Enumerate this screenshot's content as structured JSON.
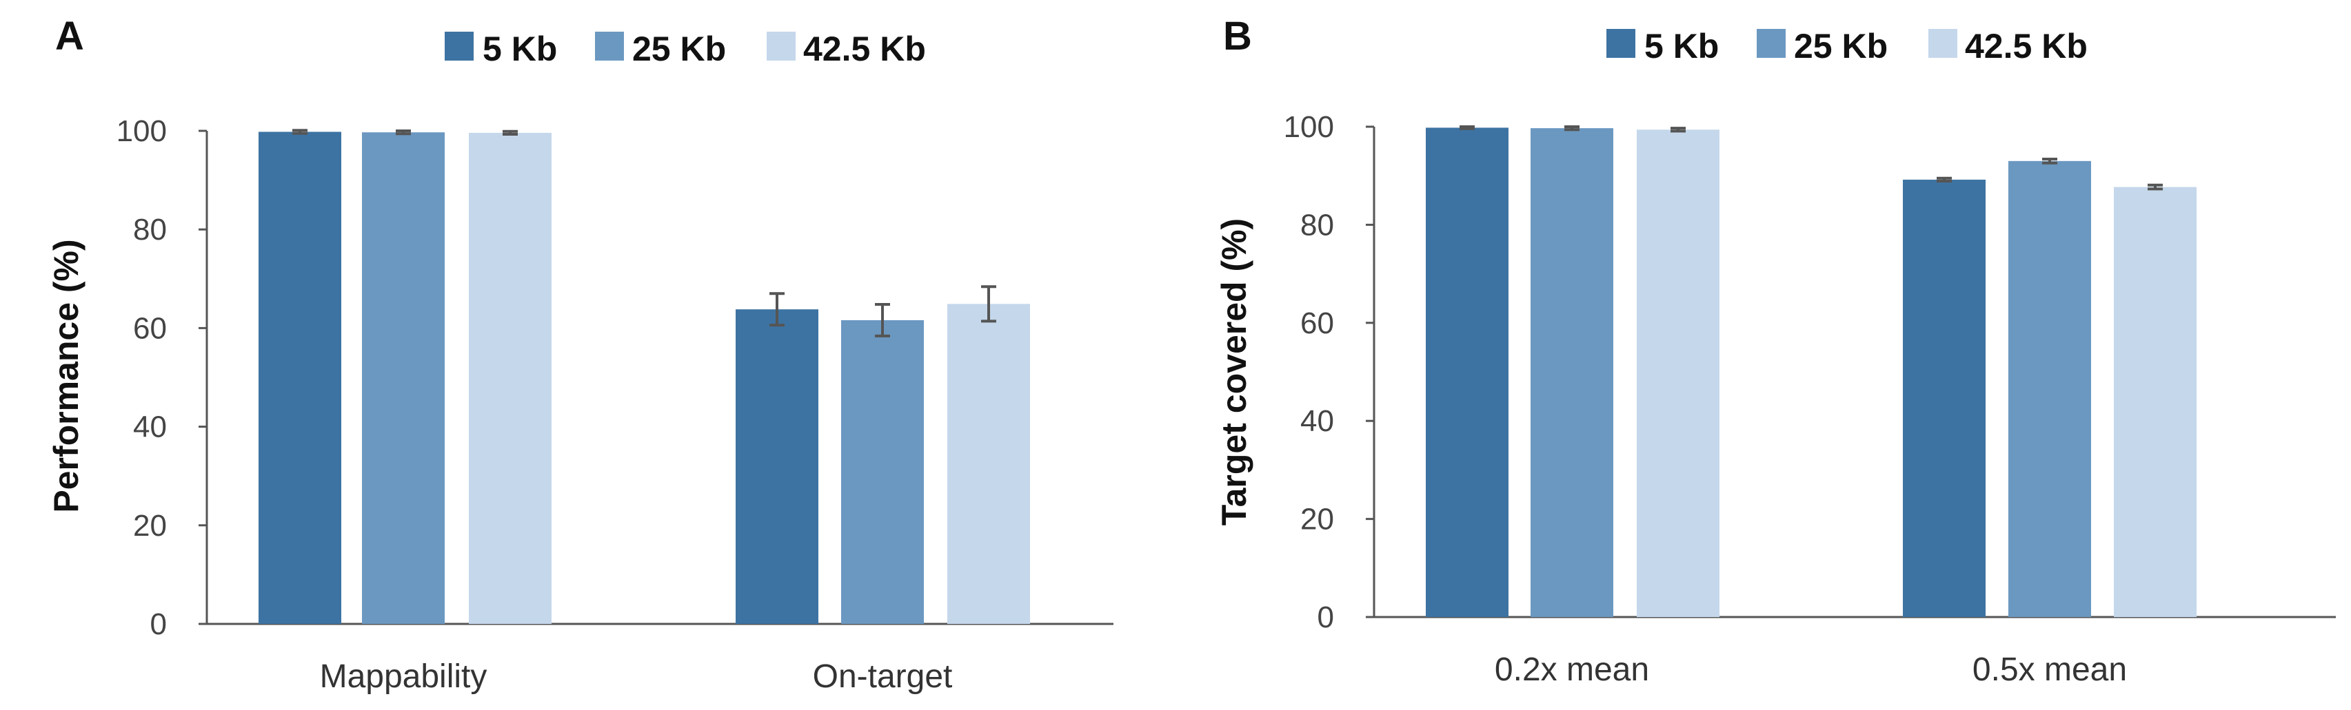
{
  "legend_labels": [
    "5 Kb",
    "25 Kb",
    "42.5 Kb"
  ],
  "colors": [
    "#3d73a2",
    "#6b98c1",
    "#c5d7eb"
  ],
  "chart_data": [
    {
      "type": "bar",
      "panel": "A",
      "categories": [
        "Mappability",
        "On-target"
      ],
      "series": [
        {
          "name": "5 Kb",
          "values": [
            99.8,
            63.8
          ],
          "errors": [
            0.3,
            3.2
          ]
        },
        {
          "name": "25 Kb",
          "values": [
            99.7,
            61.6
          ],
          "errors": [
            0.3,
            3.2
          ]
        },
        {
          "name": "42.5 Kb",
          "values": [
            99.6,
            64.9
          ],
          "errors": [
            0.3,
            3.5
          ]
        }
      ],
      "ylabel": "Performance (%)",
      "xlabel": "",
      "ylim": [
        0,
        100
      ],
      "yticks": [
        0,
        20,
        40,
        60,
        80,
        100
      ],
      "grid": false,
      "legend": "top"
    },
    {
      "type": "bar",
      "panel": "B",
      "categories": [
        "0.2x mean",
        "0.5x mean"
      ],
      "series": [
        {
          "name": "5 Kb",
          "values": [
            99.8,
            89.2
          ],
          "errors": [
            0.2,
            0.3
          ]
        },
        {
          "name": "25 Kb",
          "values": [
            99.7,
            93.0
          ],
          "errors": [
            0.3,
            0.4
          ]
        },
        {
          "name": "42.5 Kb",
          "values": [
            99.4,
            87.7
          ],
          "errors": [
            0.3,
            0.4
          ]
        }
      ],
      "ylabel": "Target covered (%)",
      "xlabel": "",
      "ylim": [
        0,
        100
      ],
      "yticks": [
        0,
        20,
        40,
        60,
        80,
        100
      ],
      "grid": false,
      "legend": "top"
    }
  ]
}
